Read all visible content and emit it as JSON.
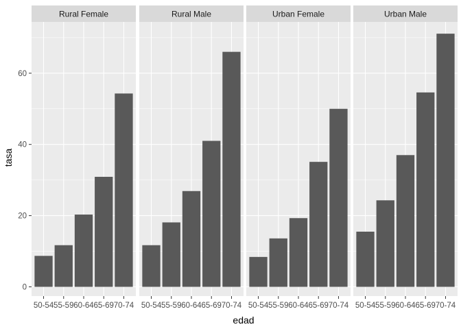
{
  "chart_data": {
    "type": "bar",
    "facet_layout": "1 row x 4 columns, shared y-axis",
    "xlabel": "edad",
    "ylabel": "tasa",
    "categories": [
      "50-54",
      "55-59",
      "60-64",
      "65-69",
      "70-74"
    ],
    "ylim": [
      0,
      74
    ],
    "yticks": [
      0,
      20,
      40,
      60
    ],
    "grid": true,
    "colors": {
      "panel_background": "#ebebeb",
      "strip_background": "#d9d9d9",
      "bar_fill": "#595959",
      "grid_line": "#ffffff"
    },
    "panels": [
      {
        "name": "Rural Female",
        "values": [
          8.7,
          11.7,
          20.3,
          30.9,
          54.3
        ]
      },
      {
        "name": "Rural Male",
        "values": [
          11.7,
          18.1,
          26.9,
          41.0,
          66.0
        ]
      },
      {
        "name": "Urban Female",
        "values": [
          8.4,
          13.6,
          19.3,
          35.1,
          50.0
        ]
      },
      {
        "name": "Urban Male",
        "values": [
          15.5,
          24.3,
          37.0,
          54.6,
          71.1
        ]
      }
    ]
  }
}
